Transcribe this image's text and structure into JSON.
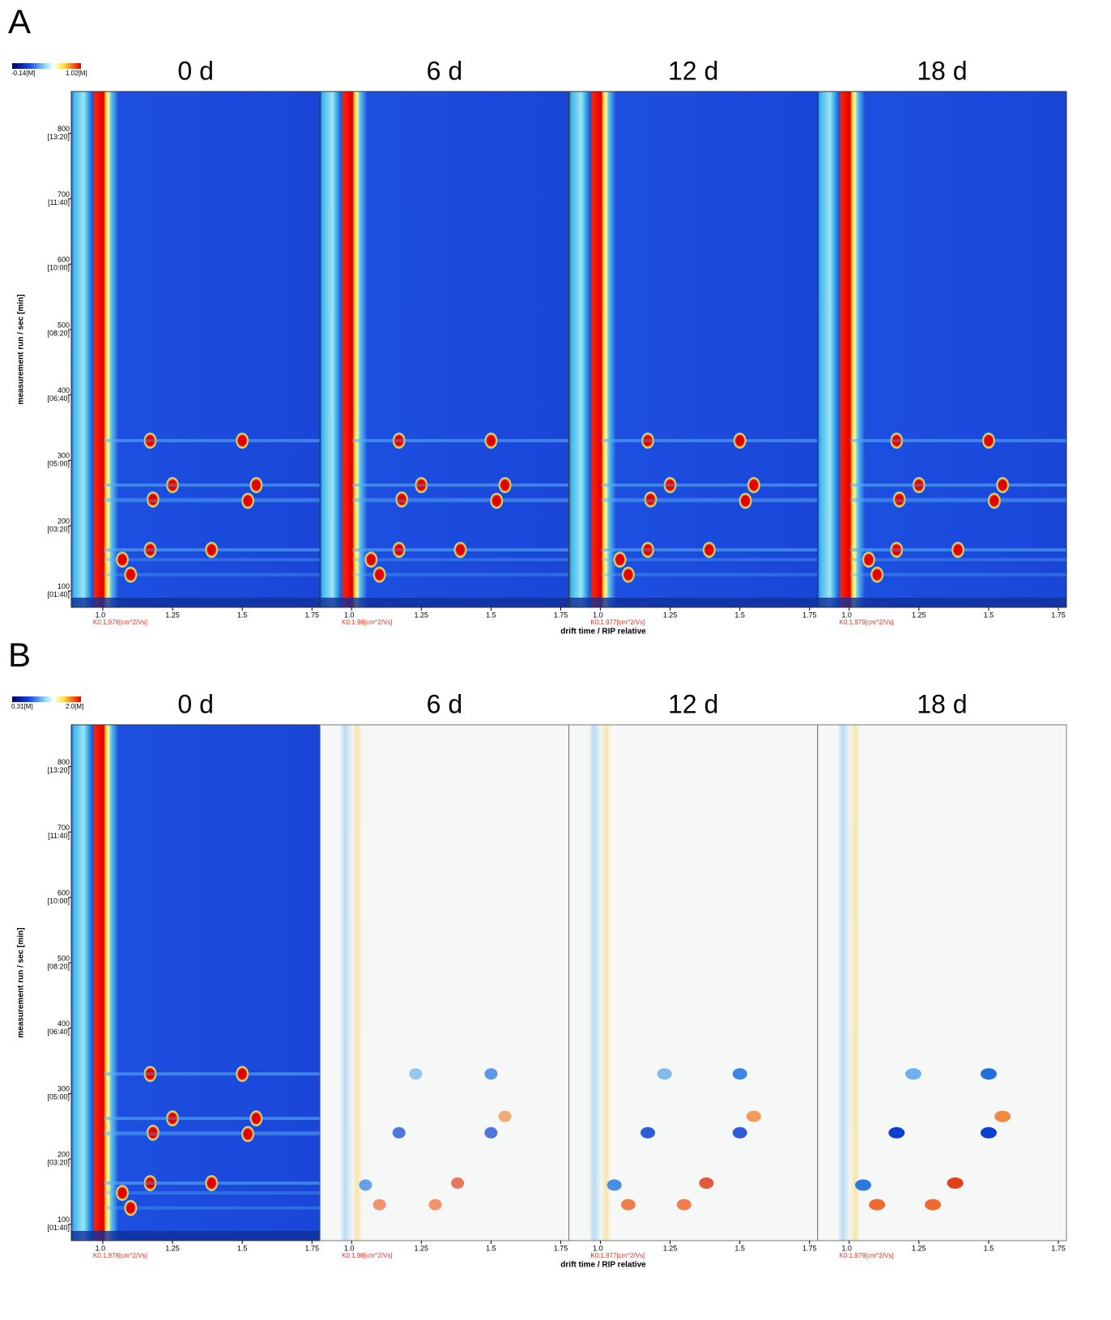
{
  "chart_data": [
    {
      "type": "heatmap",
      "label": "A",
      "colorbar": {
        "min_label": "-0.14[M]",
        "max_label": "1.02[M]"
      },
      "panels": [
        {
          "title": "0 d",
          "k0": "K0:1.978[cm^2/Vs]"
        },
        {
          "title": "6 d",
          "k0": "K0:1.98[cm^2/Vs]"
        },
        {
          "title": "12 d",
          "k0": "K0:1.977[cm^2/Vs]"
        },
        {
          "title": "18 d",
          "k0": "K0:1.979[cm^2/Vs]"
        }
      ],
      "x_label": "drift time / RIP relative",
      "y_label": "measurement run / sec [min]",
      "xlim": [
        0.887,
        1.779
      ],
      "xticks": [
        {
          "value": 1,
          "label": "1.0"
        },
        1.25,
        1.5,
        1.75
      ],
      "ylim": [
        75,
        864
      ],
      "yticks": [
        {
          "value": 100,
          "label": "100",
          "time": "[01:40]"
        },
        {
          "value": 200,
          "label": "200",
          "time": "[03:20]"
        },
        {
          "value": 300,
          "label": "300",
          "time": "[05:00]"
        },
        {
          "value": 400,
          "label": "400",
          "time": "[06:40]"
        },
        {
          "value": 500,
          "label": "500",
          "time": "[08:20]"
        },
        {
          "value": 600,
          "label": "600",
          "time": "[10:00]"
        },
        {
          "value": 700,
          "label": "700",
          "time": "[11:40]"
        },
        {
          "value": 800,
          "label": "800",
          "time": "[13:20]"
        }
      ],
      "spots": [
        {
          "drift": 1.17,
          "run": 330
        },
        {
          "drift": 1.5,
          "run": 330
        },
        {
          "drift": 1.25,
          "run": 262
        },
        {
          "drift": 1.55,
          "run": 262
        },
        {
          "drift": 1.18,
          "run": 240
        },
        {
          "drift": 1.52,
          "run": 238
        },
        {
          "drift": 1.17,
          "run": 163
        },
        {
          "drift": 1.39,
          "run": 163
        },
        {
          "drift": 1.07,
          "run": 148
        },
        {
          "drift": 1.1,
          "run": 125
        }
      ]
    },
    {
      "type": "heatmap",
      "label": "B",
      "colorbar": {
        "min_label": "0.31[M]",
        "max_label": "2.0[M]"
      },
      "panels": [
        {
          "title": "0 d",
          "k0": "K0:1.978[cm^2/Vs]",
          "difference": false
        },
        {
          "title": "6 d",
          "k0": "K0:1.98[cm^2/Vs]",
          "difference": true
        },
        {
          "title": "12 d",
          "k0": "K0:1.977[cm^2/Vs]",
          "difference": true
        },
        {
          "title": "18 d",
          "k0": "K0:1.979[cm^2/Vs]",
          "difference": true
        }
      ],
      "x_label": "drift time / RIP relative",
      "y_label": "measurement run / sec [min]",
      "xlim": [
        0.887,
        1.779
      ],
      "xticks": [
        {
          "value": 1,
          "label": "1.0"
        },
        1.25,
        1.5,
        1.75
      ],
      "ylim": [
        75,
        864
      ],
      "yticks": [
        {
          "value": 100,
          "label": "100",
          "time": "[01:40]"
        },
        {
          "value": 200,
          "label": "200",
          "time": "[03:20]"
        },
        {
          "value": 300,
          "label": "300",
          "time": "[05:00]"
        },
        {
          "value": 400,
          "label": "400",
          "time": "[06:40]"
        },
        {
          "value": 500,
          "label": "500",
          "time": "[08:20]"
        },
        {
          "value": 600,
          "label": "600",
          "time": "[10:00]"
        },
        {
          "value": 700,
          "label": "700",
          "time": "[11:40]"
        },
        {
          "value": 800,
          "label": "800",
          "time": "[13:20]"
        }
      ],
      "spots": [
        {
          "drift": 1.17,
          "run": 330
        },
        {
          "drift": 1.5,
          "run": 330
        },
        {
          "drift": 1.25,
          "run": 262
        },
        {
          "drift": 1.55,
          "run": 262
        },
        {
          "drift": 1.18,
          "run": 240
        },
        {
          "drift": 1.52,
          "run": 238
        },
        {
          "drift": 1.17,
          "run": 163
        },
        {
          "drift": 1.39,
          "run": 163
        },
        {
          "drift": 1.07,
          "run": 148
        },
        {
          "drift": 1.1,
          "run": 125
        }
      ],
      "diff_spots": [
        {
          "drift": 1.17,
          "run": 240,
          "color": "#0a3fd0"
        },
        {
          "drift": 1.5,
          "run": 240,
          "color": "#0a3fd0"
        },
        {
          "drift": 1.5,
          "run": 330,
          "color": "#1f6fe0"
        },
        {
          "drift": 1.23,
          "run": 330,
          "color": "#6fb0f0"
        },
        {
          "drift": 1.38,
          "run": 163,
          "color": "#e0401a"
        },
        {
          "drift": 1.55,
          "run": 265,
          "color": "#f08a40"
        },
        {
          "drift": 1.1,
          "run": 130,
          "color": "#f06a30"
        },
        {
          "drift": 1.3,
          "run": 130,
          "color": "#f06a30"
        },
        {
          "drift": 1.05,
          "run": 160,
          "color": "#2a7ae0"
        }
      ]
    }
  ]
}
